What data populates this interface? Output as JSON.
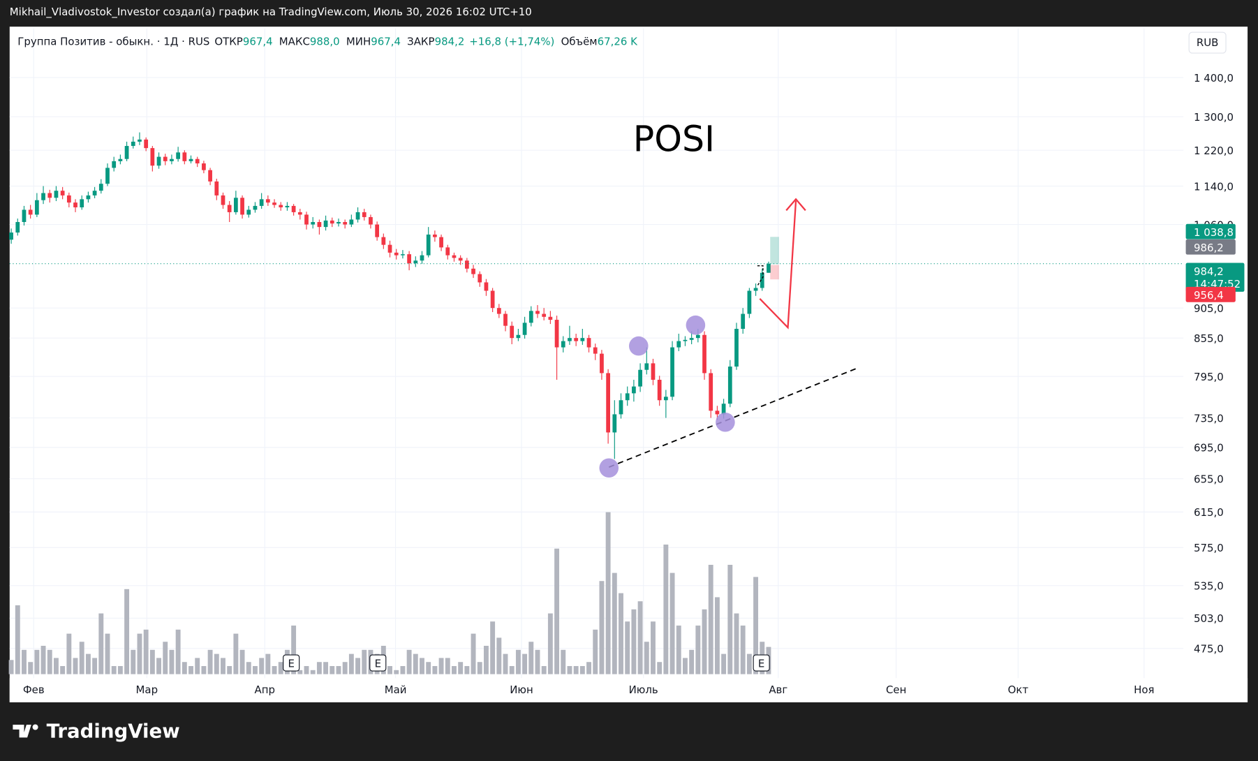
{
  "header": {
    "text": "Mikhail_Vladivostok_Investor создал(а) график на TradingView.com, Июль 30, 2026 16:02 UTC+10"
  },
  "footer": {
    "brand": "TradingView"
  },
  "chart_data": {
    "type": "candlestick",
    "annotation": "POSI",
    "currency": "RUB",
    "legend": {
      "symbol": "Группа Позитив - обыкн. · 1Д · RUS",
      "items": [
        {
          "label": "ОТКР",
          "value": "967,4"
        },
        {
          "label": "МАКС",
          "value": "988,0"
        },
        {
          "label": "МИН",
          "value": "967,4"
        },
        {
          "label": "ЗАКР",
          "value": "984,2"
        }
      ],
      "change": "+16,8 (+1,74%)",
      "volume": {
        "label": "Объём",
        "value": "67,26 K"
      }
    },
    "months": [
      "Фев",
      "Мар",
      "Апр",
      "Май",
      "Июн",
      "Июль",
      "Авг",
      "Сен",
      "Окт",
      "Ноя"
    ],
    "events": [
      "E",
      "E",
      "E"
    ],
    "log_scale": true,
    "grid": true,
    "up_color": "#089981",
    "down_color": "#f23645",
    "volume_color": "#b2b5be",
    "ylim": [
      449,
      1537
    ],
    "volume_lim": [
      0,
      420
    ],
    "yticks": [
      {
        "value": 1400,
        "label": "1 400,0"
      },
      {
        "value": 1300,
        "label": "1 300,0"
      },
      {
        "value": 1220,
        "label": "1 220,0"
      },
      {
        "value": 1140,
        "label": "1 140,0"
      },
      {
        "value": 1060,
        "label": "1 060,0"
      },
      {
        "value": 905,
        "label": "905,0"
      },
      {
        "value": 855,
        "label": "855,0"
      },
      {
        "value": 795,
        "label": "795,0"
      },
      {
        "value": 735,
        "label": "735,0"
      },
      {
        "value": 695,
        "label": "695,0"
      },
      {
        "value": 655,
        "label": "655,0"
      },
      {
        "value": 615,
        "label": "615,0"
      },
      {
        "value": 575,
        "label": "575,0"
      },
      {
        "value": 535,
        "label": "535,0"
      },
      {
        "value": 503,
        "label": "503,0"
      },
      {
        "value": 475,
        "label": "475,0"
      }
    ],
    "price_labels": [
      {
        "value": 1038.8,
        "label": "1 038,8",
        "color": "#089981"
      },
      {
        "value": 986.2,
        "label": "986,2",
        "color": "#787b86"
      },
      {
        "value": 984.2,
        "label": "984,2",
        "color": "#089981",
        "countdown": "14:47:52"
      },
      {
        "value": 956.4,
        "label": "956,4",
        "color": "#f23645"
      }
    ],
    "open": [
      1030,
      1044,
      1065,
      1090,
      1080,
      1110,
      1125,
      1115,
      1130,
      1120,
      1105,
      1095,
      1112,
      1120,
      1130,
      1145,
      1180,
      1195,
      1200,
      1230,
      1240,
      1245,
      1225,
      1185,
      1205,
      1195,
      1200,
      1215,
      1195,
      1200,
      1190,
      1175,
      1150,
      1120,
      1100,
      1085,
      1115,
      1080,
      1090,
      1098,
      1112,
      1105,
      1100,
      1095,
      1098,
      1085,
      1080,
      1060,
      1065,
      1055,
      1068,
      1062,
      1065,
      1060,
      1070,
      1085,
      1075,
      1060,
      1035,
      1020,
      1005,
      1000,
      1002,
      985,
      990,
      1000,
      1040,
      1035,
      1015,
      1000,
      995,
      990,
      975,
      965,
      950,
      935,
      905,
      895,
      875,
      855,
      860,
      880,
      900,
      895,
      890,
      885,
      840,
      850,
      855,
      850,
      855,
      840,
      830,
      800,
      715,
      740,
      760,
      770,
      780,
      805,
      815,
      790,
      760,
      765,
      840,
      850,
      852,
      855,
      860,
      800,
      745,
      740,
      755,
      810,
      870,
      895,
      935,
      940,
      967.4
    ],
    "high": [
      1052,
      1072,
      1098,
      1100,
      1125,
      1140,
      1132,
      1140,
      1138,
      1126,
      1112,
      1120,
      1128,
      1138,
      1155,
      1190,
      1205,
      1210,
      1240,
      1252,
      1262,
      1250,
      1230,
      1215,
      1212,
      1210,
      1228,
      1220,
      1208,
      1205,
      1196,
      1180,
      1156,
      1126,
      1108,
      1130,
      1120,
      1098,
      1106,
      1125,
      1120,
      1112,
      1106,
      1106,
      1102,
      1092,
      1086,
      1075,
      1070,
      1078,
      1074,
      1072,
      1070,
      1080,
      1095,
      1092,
      1080,
      1066,
      1042,
      1028,
      1012,
      1010,
      1008,
      998,
      1008,
      1055,
      1048,
      1040,
      1020,
      1005,
      1000,
      995,
      982,
      970,
      956,
      940,
      912,
      900,
      882,
      870,
      890,
      908,
      910,
      905,
      900,
      892,
      858,
      875,
      862,
      870,
      860,
      846,
      836,
      806,
      760,
      770,
      780,
      790,
      815,
      840,
      822,
      796,
      775,
      850,
      862,
      858,
      866,
      870,
      866,
      806,
      752,
      762,
      820,
      880,
      905,
      940,
      948,
      975,
      988
    ],
    "low": [
      1022,
      1038,
      1058,
      1072,
      1075,
      1102,
      1105,
      1108,
      1112,
      1095,
      1085,
      1090,
      1105,
      1114,
      1124,
      1140,
      1172,
      1188,
      1195,
      1224,
      1232,
      1218,
      1172,
      1178,
      1186,
      1188,
      1194,
      1188,
      1190,
      1182,
      1168,
      1142,
      1110,
      1092,
      1065,
      1080,
      1072,
      1074,
      1084,
      1092,
      1098,
      1094,
      1088,
      1088,
      1078,
      1070,
      1050,
      1052,
      1040,
      1048,
      1055,
      1056,
      1052,
      1055,
      1064,
      1068,
      1052,
      1028,
      1012,
      996,
      992,
      994,
      972,
      978,
      984,
      996,
      1026,
      1008,
      992,
      988,
      982,
      968,
      958,
      942,
      926,
      898,
      888,
      866,
      845,
      850,
      854,
      874,
      888,
      884,
      878,
      790,
      832,
      844,
      842,
      844,
      832,
      820,
      790,
      700,
      680,
      734,
      752,
      758,
      772,
      798,
      782,
      752,
      735,
      760,
      834,
      842,
      845,
      848,
      790,
      735,
      732,
      734,
      750,
      805,
      862,
      888,
      926,
      935,
      967.4
    ],
    "close": [
      1044,
      1065,
      1090,
      1080,
      1110,
      1125,
      1115,
      1130,
      1120,
      1105,
      1095,
      1112,
      1120,
      1130,
      1145,
      1180,
      1195,
      1200,
      1230,
      1240,
      1245,
      1225,
      1185,
      1205,
      1195,
      1200,
      1215,
      1195,
      1200,
      1190,
      1175,
      1150,
      1120,
      1100,
      1085,
      1115,
      1080,
      1090,
      1098,
      1112,
      1105,
      1100,
      1095,
      1098,
      1085,
      1080,
      1060,
      1065,
      1055,
      1068,
      1062,
      1065,
      1060,
      1070,
      1085,
      1075,
      1060,
      1035,
      1020,
      1005,
      1000,
      1002,
      985,
      990,
      1000,
      1040,
      1035,
      1015,
      1000,
      995,
      990,
      975,
      965,
      950,
      935,
      905,
      895,
      875,
      855,
      860,
      880,
      900,
      895,
      890,
      885,
      840,
      850,
      855,
      850,
      855,
      840,
      830,
      800,
      715,
      740,
      760,
      770,
      780,
      805,
      815,
      790,
      760,
      765,
      840,
      850,
      852,
      855,
      860,
      800,
      745,
      740,
      755,
      810,
      870,
      895,
      935,
      940,
      967.4,
      984.2
    ],
    "volume": [
      35,
      170,
      60,
      30,
      60,
      70,
      60,
      40,
      20,
      100,
      40,
      80,
      50,
      40,
      150,
      100,
      20,
      20,
      210,
      60,
      100,
      110,
      60,
      40,
      80,
      60,
      110,
      30,
      20,
      40,
      20,
      60,
      50,
      40,
      20,
      100,
      60,
      30,
      20,
      40,
      50,
      20,
      30,
      60,
      120,
      10,
      20,
      10,
      30,
      30,
      20,
      20,
      30,
      50,
      40,
      60,
      60,
      50,
      70,
      20,
      10,
      20,
      60,
      50,
      40,
      30,
      20,
      40,
      40,
      20,
      30,
      20,
      100,
      30,
      70,
      130,
      90,
      50,
      20,
      60,
      50,
      80,
      60,
      20,
      150,
      310,
      60,
      20,
      20,
      20,
      30,
      110,
      230,
      400,
      250,
      200,
      130,
      160,
      180,
      80,
      130,
      30,
      320,
      250,
      120,
      40,
      60,
      120,
      160,
      270,
      190,
      50,
      270,
      150,
      120,
      50,
      240,
      80,
      67.26
    ]
  }
}
